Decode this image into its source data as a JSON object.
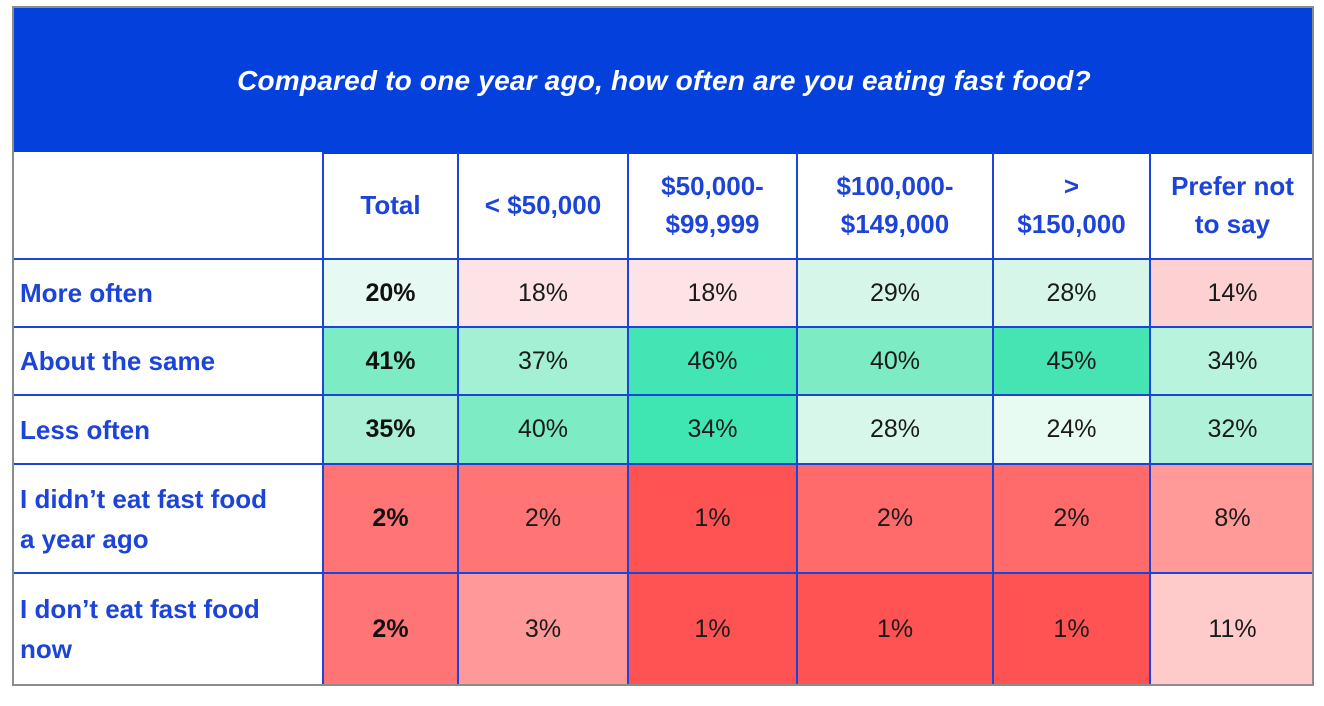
{
  "chart_data": {
    "type": "table",
    "title": "Compared to one year ago, how often are you eating fast food?",
    "columns": [
      "Total",
      "< $50,000",
      "$50,000-\n$99,999",
      "$100,000-\n$149,000",
      ">\n$150,000",
      "Prefer not\nto say"
    ],
    "rows": [
      {
        "label": "More often",
        "values": [
          "20%",
          "18%",
          "18%",
          "29%",
          "28%",
          "14%"
        ],
        "colors": [
          "#e6faf3",
          "#fde3e5",
          "#fde3e5",
          "#d6f6ea",
          "#d6f6ea",
          "#fdd0d1"
        ]
      },
      {
        "label": "About the same",
        "values": [
          "41%",
          "37%",
          "46%",
          "40%",
          "45%",
          "34%"
        ],
        "colors": [
          "#7debc4",
          "#a3f0d5",
          "#42e5b3",
          "#7debc4",
          "#45e4b2",
          "#b8f3de"
        ]
      },
      {
        "label": "Less often",
        "values": [
          "35%",
          "40%",
          "34%",
          "28%",
          "24%",
          "32%"
        ],
        "colors": [
          "#a9f0d7",
          "#7debc4",
          "#40e6b2",
          "#d8f7eb",
          "#e8fbf3",
          "#b0f2d9"
        ]
      },
      {
        "label": "I didn’t eat fast food\na year ago",
        "values": [
          "2%",
          "2%",
          "1%",
          "2%",
          "2%",
          "8%"
        ],
        "colors": [
          "#ff7474",
          "#ff7474",
          "#ff5252",
          "#ff6b6b",
          "#ff6b6b",
          "#ff9a98"
        ]
      },
      {
        "label": "I don’t eat fast food\nnow",
        "values": [
          "2%",
          "3%",
          "1%",
          "1%",
          "1%",
          "11%"
        ],
        "colors": [
          "#ff7474",
          "#ff9898",
          "#ff5252",
          "#ff5252",
          "#ff5252",
          "#ffcaca"
        ]
      }
    ]
  },
  "colors": {
    "header_background": "#0340dc",
    "accent_text": "#1d44d8",
    "grid_line": "#1d44d8",
    "frame_border": "#8c8c8c"
  }
}
